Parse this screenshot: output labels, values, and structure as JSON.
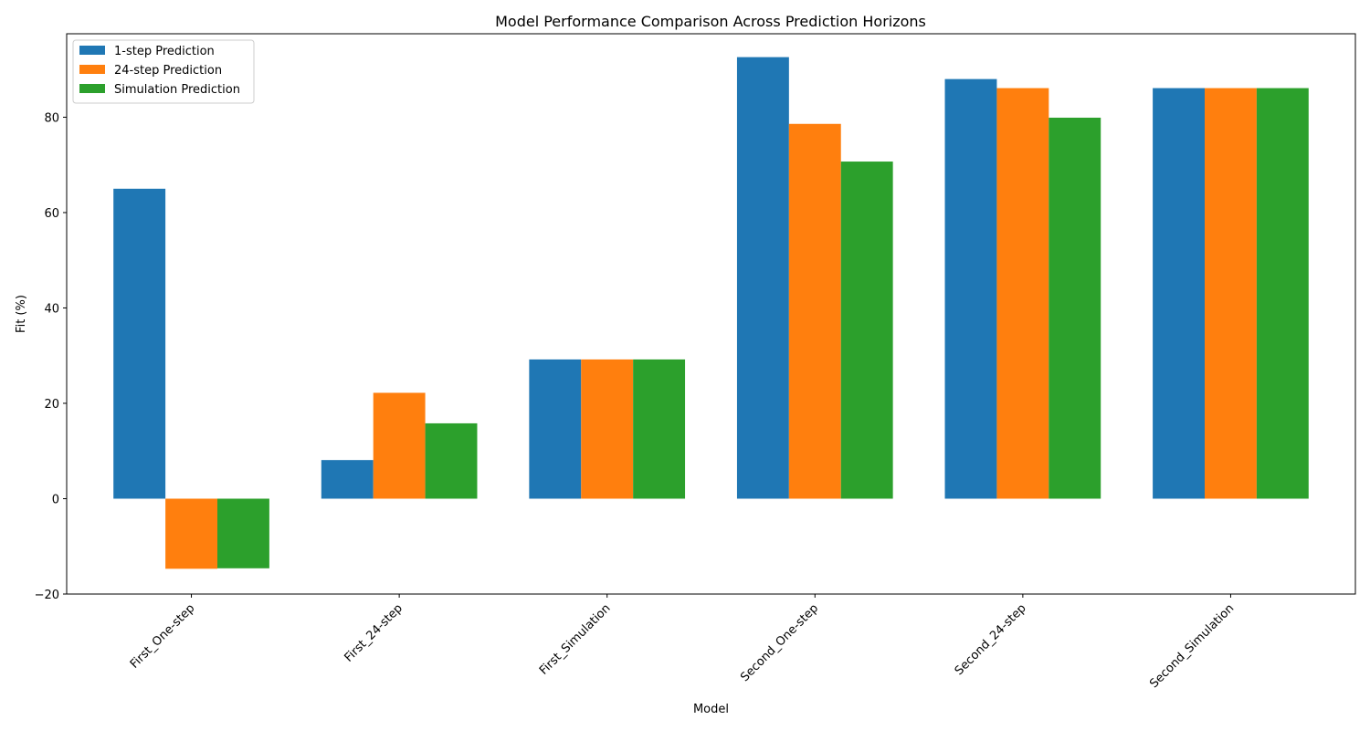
{
  "chart_data": {
    "type": "bar",
    "title": "Model Performance Comparison Across Prediction Horizons",
    "xlabel": "Model",
    "ylabel": "Fit (%)",
    "ylim": [
      -20,
      97.5
    ],
    "yticks": [
      -20,
      0,
      20,
      40,
      60,
      80
    ],
    "categories": [
      "First_One-step",
      "First_24-step",
      "First_Simulation",
      "Second_One-step",
      "Second_24-step",
      "Second_Simulation"
    ],
    "series": [
      {
        "name": "1-step Prediction",
        "color": "#1f77b4",
        "values": [
          65.0,
          8.1,
          29.2,
          92.6,
          88.0,
          86.1
        ]
      },
      {
        "name": "24-step Prediction",
        "color": "#ff7f0e",
        "values": [
          -14.7,
          22.2,
          29.2,
          78.6,
          86.1,
          86.1
        ]
      },
      {
        "name": "Simulation Prediction",
        "color": "#2ca02c",
        "values": [
          -14.6,
          15.8,
          29.2,
          70.7,
          79.9,
          86.1
        ]
      }
    ],
    "legend_position": "top-left",
    "grid": false,
    "xtick_rotation": 45
  }
}
